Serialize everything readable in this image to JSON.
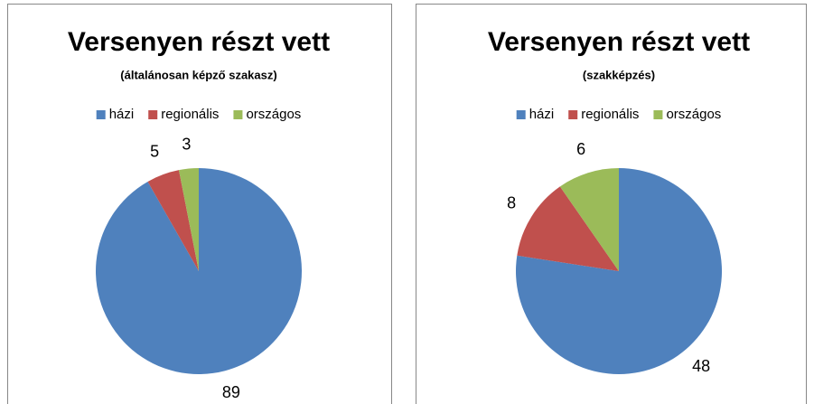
{
  "chart_data": [
    {
      "type": "pie",
      "title": "Versenyen részt vett",
      "subtitle": "(általánosan képző szakasz)",
      "categories": [
        "házi",
        "regionális",
        "országos"
      ],
      "values": [
        89,
        5,
        3
      ],
      "colors": [
        "#4f81bd",
        "#c0504d",
        "#9bbb59"
      ],
      "legend": "top"
    },
    {
      "type": "pie",
      "title": "Versenyen részt vett",
      "subtitle": "(szakképzés)",
      "categories": [
        "házi",
        "regionális",
        "országos"
      ],
      "values": [
        48,
        8,
        6
      ],
      "colors": [
        "#4f81bd",
        "#c0504d",
        "#9bbb59"
      ],
      "legend": "top"
    }
  ]
}
